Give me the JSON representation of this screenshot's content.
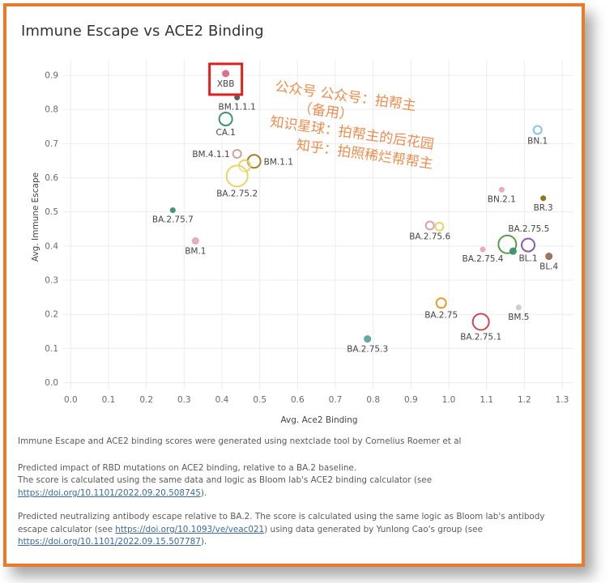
{
  "chart_data": {
    "type": "scatter",
    "title": "Immune Escape vs ACE2 Binding",
    "xlabel": "Avg. Ace2 Binding",
    "ylabel": "Avg. Immune Escape",
    "xlim": [
      -0.02,
      1.33
    ],
    "ylim": [
      -0.02,
      0.945
    ],
    "xticks": [
      "0.0",
      "0.1",
      "0.2",
      "0.3",
      "0.4",
      "0.5",
      "0.6",
      "0.7",
      "0.8",
      "0.9",
      "1.0",
      "1.1",
      "1.2",
      "1.3"
    ],
    "yticks": [
      "0.0",
      "0.1",
      "0.2",
      "0.3",
      "0.4",
      "0.5",
      "0.6",
      "0.7",
      "0.8",
      "0.9"
    ],
    "grid": true,
    "points": [
      {
        "label": "XBB",
        "x": 0.41,
        "y": 0.905,
        "size": 4,
        "color": "#d86b8c",
        "label_pos": "below",
        "highlight": true
      },
      {
        "label": "BM.1.1.1",
        "x": 0.44,
        "y": 0.835,
        "size": 3,
        "color": "#555555",
        "label_pos": "below"
      },
      {
        "label": "CA.1",
        "x": 0.41,
        "y": 0.772,
        "size": 8,
        "color": "#3d9270",
        "label_pos": "below"
      },
      {
        "label": "BM.4.1.1",
        "x": 0.44,
        "y": 0.67,
        "size": 5,
        "color": "#cfa0a0",
        "label_pos": "left"
      },
      {
        "label": "BM.1.1",
        "x": 0.485,
        "y": 0.648,
        "size": 8,
        "color": "#a67c2e",
        "label_pos": "right"
      },
      {
        "label": "",
        "x": 0.46,
        "y": 0.635,
        "size": 7,
        "color": "#e8d36a",
        "label_pos": "none"
      },
      {
        "label": "BA.2.75.2",
        "x": 0.44,
        "y": 0.605,
        "size": 13,
        "color": "#e8d36a",
        "label_pos": "below"
      },
      {
        "label": "BA.2.75.7",
        "x": 0.27,
        "y": 0.505,
        "size": 3,
        "color": "#3d9270",
        "label_pos": "below"
      },
      {
        "label": "BM.1",
        "x": 0.33,
        "y": 0.415,
        "size": 4,
        "color": "#e8a8b5",
        "label_pos": "below"
      },
      {
        "label": "BN.1",
        "x": 1.235,
        "y": 0.74,
        "size": 5,
        "color": "#8cc1dd",
        "label_pos": "below"
      },
      {
        "label": "BN.2.1",
        "x": 1.14,
        "y": 0.565,
        "size": 3,
        "color": "#e8a8b5",
        "label_pos": "below"
      },
      {
        "label": "BR.3",
        "x": 1.25,
        "y": 0.54,
        "size": 3,
        "color": "#8b6d1a",
        "label_pos": "below"
      },
      {
        "label": "BA.2.75.6",
        "x": 0.95,
        "y": 0.46,
        "size": 5,
        "color": "#d6a0c0",
        "label_pos": "below"
      },
      {
        "label": "",
        "x": 0.975,
        "y": 0.457,
        "size": 5,
        "color": "#e8d36a",
        "label_pos": "none"
      },
      {
        "label": "BA.2.75.5",
        "x": 1.155,
        "y": 0.405,
        "size": 11,
        "color": "#5a9a4a",
        "label_pos": "above-right"
      },
      {
        "label": "BL.1",
        "x": 1.21,
        "y": 0.403,
        "size": 8,
        "color": "#8c5aa6",
        "label_pos": "below"
      },
      {
        "label": "",
        "x": 1.17,
        "y": 0.385,
        "size": 4,
        "color": "#3d9270",
        "label_pos": "none"
      },
      {
        "label": "BA.2.75.4",
        "x": 1.09,
        "y": 0.39,
        "size": 3,
        "color": "#e8a8b5",
        "label_pos": "below"
      },
      {
        "label": "BL.4",
        "x": 1.265,
        "y": 0.37,
        "size": 4,
        "color": "#9b6b5a",
        "label_pos": "below"
      },
      {
        "label": "BA.2.75",
        "x": 0.98,
        "y": 0.233,
        "size": 6,
        "color": "#e89a2a",
        "label_pos": "below"
      },
      {
        "label": "BM.5",
        "x": 1.185,
        "y": 0.22,
        "size": 3,
        "color": "#cccccc",
        "label_pos": "below"
      },
      {
        "label": "BA.2.75.1",
        "x": 1.085,
        "y": 0.178,
        "size": 10,
        "color": "#c94a55",
        "label_pos": "below"
      },
      {
        "label": "BA.2.75.3",
        "x": 0.785,
        "y": 0.128,
        "size": 4,
        "color": "#5aa8a0",
        "label_pos": "below"
      }
    ]
  },
  "watermark": {
    "lines": [
      "公众号     公众号：拍帮主",
      "知识星球：拍帮主的后花园",
      "知乎：拍照稀烂帮帮主"
    ],
    "extra": "（备用）",
    "color": "#e8742a"
  },
  "footer": {
    "line1": "Immune Escape and ACE2 binding scores were generated using nextclade tool by Cornelius Roemer et al",
    "p2_a": "Predicted impact of RBD mutations on ACE2 binding, relative to a BA.2 baseline.",
    "p2_b": "The score is calculated using the same data and logic as Bloom lab's ACE2 binding calculator (see",
    "p2_link": "https://doi.org/10.1101/2022.09.20.508745",
    "p2_end": ").",
    "p3_a": "Predicted neutralizing antibody escape relative to BA.2. The score is calculated using the same logic as Bloom lab's antibody escape calculator (see ",
    "p3_link1": "https://doi.org/10.1093/ve/veac021",
    "p3_b": ") using data generated by Yunlong Cao's group (see",
    "p3_link2": "https://doi.org/10.1101/2022.09.15.507787",
    "p3_end": ")."
  },
  "colors": {
    "frame": "#e97a2c",
    "highlight_box": "#e02020",
    "grid": "#ececec",
    "axis_text": "#6a6a6a"
  }
}
